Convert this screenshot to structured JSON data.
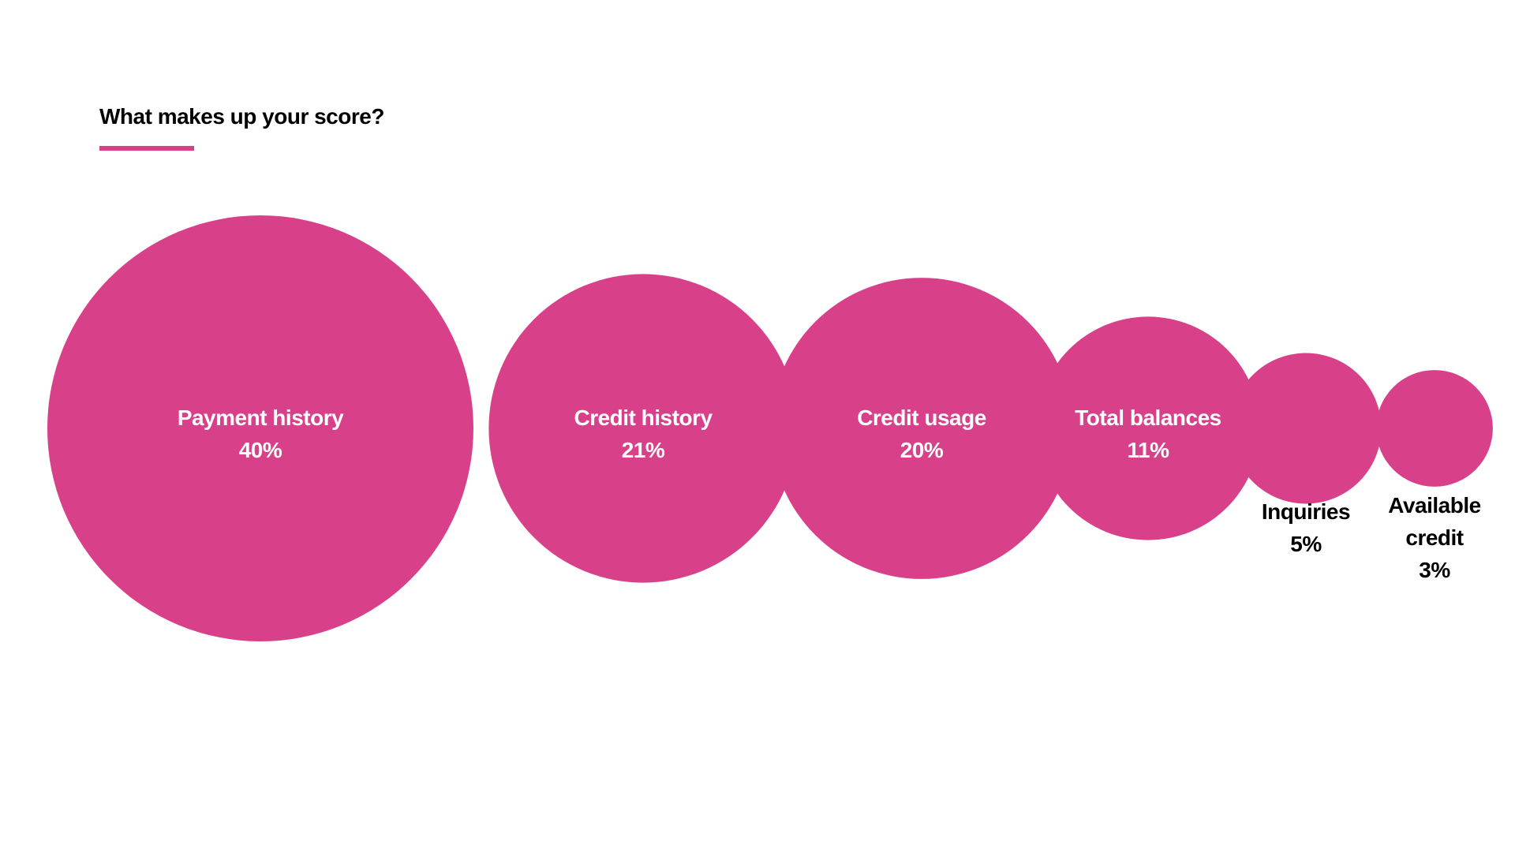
{
  "header": {
    "title": "What makes up your score?"
  },
  "colors": {
    "accent": "#d8418a",
    "inner_text": "#ffffff",
    "outer_text": "#000000"
  },
  "chart_data": {
    "type": "bubble",
    "title": "What makes up your score?",
    "unit": "%",
    "items": [
      {
        "label": "Payment history",
        "value": 40,
        "value_label": "40%"
      },
      {
        "label": "Credit history",
        "value": 21,
        "value_label": "21%"
      },
      {
        "label": "Credit usage",
        "value": 20,
        "value_label": "20%"
      },
      {
        "label": "Total balances",
        "value": 11,
        "value_label": "11%"
      },
      {
        "label": "Inquiries",
        "value": 5,
        "value_label": "5%"
      },
      {
        "label": "Available credit",
        "value": 3,
        "value_label": "3%"
      }
    ]
  }
}
